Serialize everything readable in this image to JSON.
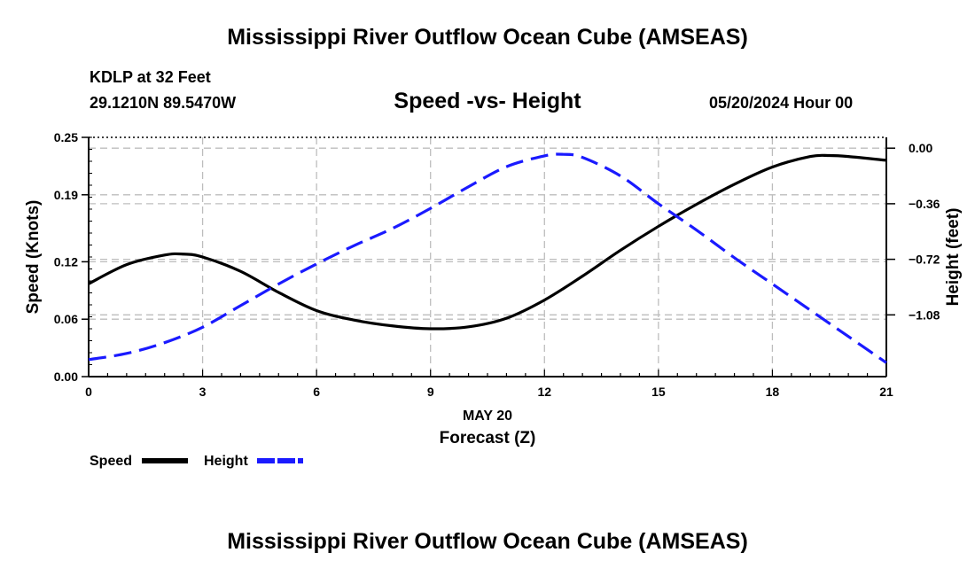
{
  "header": {
    "title": "Mississippi River Outflow Ocean Cube (AMSEAS)",
    "station": "KDLP at 32 Feet",
    "coords": "29.1210N  89.5470W",
    "subtitle": "Speed -vs- Height",
    "runtime": "05/20/2024 Hour 00",
    "footer_title": "Mississippi River Outflow Ocean Cube (AMSEAS)"
  },
  "chart_data": {
    "type": "line",
    "title": "Speed -vs- Height",
    "xlabel": "Forecast (Z)",
    "xlabel_date": "MAY 20",
    "ylabel_left": "Speed (Knots)",
    "ylabel_right": "Height (feet)",
    "xlim": [
      0,
      21
    ],
    "ylim_left": [
      0,
      0.25
    ],
    "ylim_right": [
      -1.48,
      0.07
    ],
    "x_ticks": [
      0,
      3,
      6,
      9,
      12,
      15,
      18,
      21
    ],
    "x_tick_labels": [
      "0",
      "3",
      "6",
      "9",
      "12",
      "15",
      "18",
      "21"
    ],
    "y_left_ticks": [
      0,
      0.06,
      0.12,
      0.19,
      0.25
    ],
    "y_left_tick_labels": [
      "0.00",
      "0.06",
      "0.12",
      "0.19",
      "0.25"
    ],
    "y_right_ticks": [
      0.0,
      -0.36,
      -0.72,
      -1.08
    ],
    "y_right_tick_labels": [
      "0.00",
      "−0.36",
      "−0.72",
      "−1.08"
    ],
    "grid": true,
    "legend_position": "bottom-left",
    "series": [
      {
        "name": "Speed",
        "axis": "left",
        "color": "#000000",
        "style": "solid",
        "x": [
          0,
          1,
          2,
          2.5,
          3,
          4,
          5,
          6,
          7,
          8,
          9,
          10,
          11,
          12,
          13,
          14,
          15,
          16,
          17,
          18,
          19,
          19.5,
          20,
          21
        ],
        "values": [
          0.097,
          0.117,
          0.127,
          0.128,
          0.125,
          0.11,
          0.088,
          0.069,
          0.059,
          0.053,
          0.05,
          0.052,
          0.061,
          0.08,
          0.105,
          0.132,
          0.157,
          0.18,
          0.201,
          0.219,
          0.23,
          0.231,
          0.23,
          0.226
        ]
      },
      {
        "name": "Height",
        "axis": "right",
        "color": "#1a1aff",
        "style": "dashed",
        "x": [
          0,
          1,
          2,
          3,
          4,
          5,
          6,
          7,
          8,
          9,
          10,
          11,
          12,
          12.5,
          13,
          14,
          15,
          16,
          17,
          18,
          19,
          20,
          21
        ],
        "values": [
          -1.37,
          -1.33,
          -1.26,
          -1.16,
          -1.02,
          -0.88,
          -0.75,
          -0.63,
          -0.52,
          -0.39,
          -0.25,
          -0.12,
          -0.05,
          -0.04,
          -0.06,
          -0.18,
          -0.36,
          -0.53,
          -0.71,
          -0.88,
          -1.05,
          -1.22,
          -1.39
        ]
      }
    ]
  }
}
